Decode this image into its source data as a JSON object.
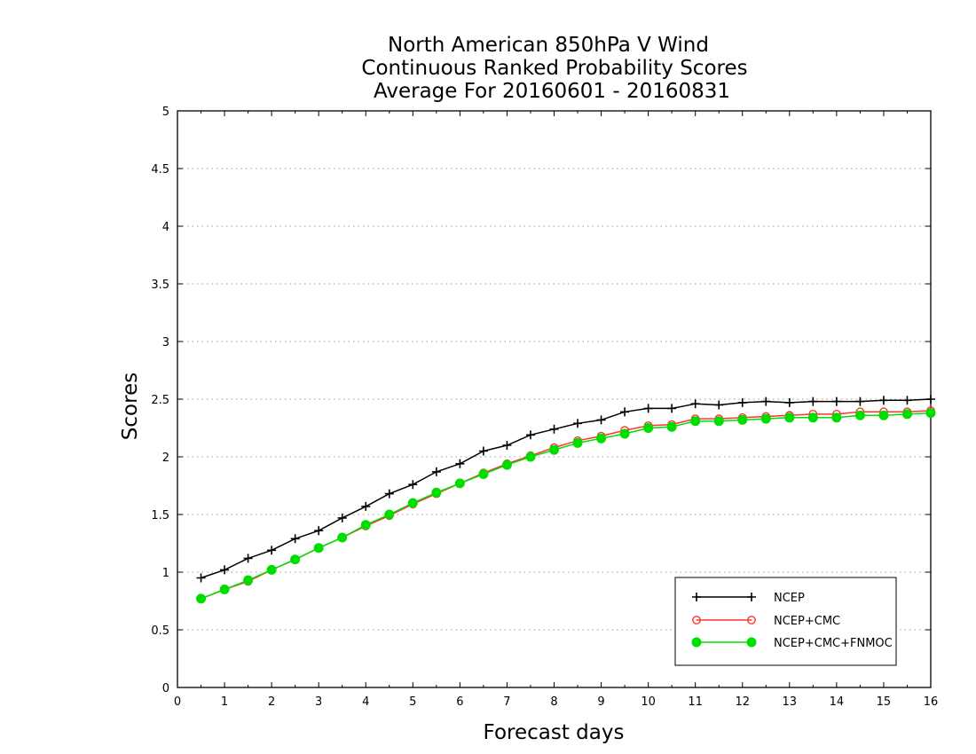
{
  "chart_data": {
    "type": "line",
    "title": [
      "North American 850hPa V Wind",
      "Continuous Ranked Probability Scores",
      "Average For 20160601 - 20160831"
    ],
    "xlabel": "Forecast days",
    "ylabel": "Scores",
    "xlim": [
      0,
      16
    ],
    "ylim": [
      0,
      5
    ],
    "x_ticks": [
      "0",
      "1",
      "2",
      "3",
      "4",
      "5",
      "6",
      "7",
      "8",
      "9",
      "10",
      "11",
      "12",
      "13",
      "14",
      "15",
      "16"
    ],
    "y_ticks": [
      "0",
      "0.5",
      "1",
      "1.5",
      "2",
      "2.5",
      "3",
      "3.5",
      "4",
      "4.5",
      "5"
    ],
    "grid": true,
    "legend_position": "bottom-right",
    "x": [
      0.5,
      1,
      1.5,
      2,
      2.5,
      3,
      3.5,
      4,
      4.5,
      5,
      5.5,
      6,
      6.5,
      7,
      7.5,
      8,
      8.5,
      9,
      9.5,
      10,
      10.5,
      11,
      11.5,
      12,
      12.5,
      13,
      13.5,
      14,
      14.5,
      15,
      15.5,
      16
    ],
    "series": [
      {
        "name": "NCEP",
        "color": "#000000",
        "marker": "plus",
        "values": [
          0.95,
          1.02,
          1.12,
          1.19,
          1.29,
          1.36,
          1.47,
          1.57,
          1.68,
          1.76,
          1.87,
          1.94,
          2.05,
          2.1,
          2.19,
          2.24,
          2.29,
          2.32,
          2.39,
          2.42,
          2.42,
          2.46,
          2.45,
          2.47,
          2.48,
          2.47,
          2.48,
          2.48,
          2.48,
          2.49,
          2.49,
          2.5
        ]
      },
      {
        "name": "NCEP+CMC",
        "color": "#ff3333",
        "marker": "open-circle",
        "values": [
          0.77,
          0.85,
          0.92,
          1.02,
          1.11,
          1.21,
          1.3,
          1.4,
          1.49,
          1.59,
          1.68,
          1.77,
          1.86,
          1.94,
          2.01,
          2.08,
          2.14,
          2.18,
          2.23,
          2.27,
          2.28,
          2.33,
          2.33,
          2.34,
          2.35,
          2.36,
          2.37,
          2.37,
          2.39,
          2.39,
          2.39,
          2.4
        ]
      },
      {
        "name": "NCEP+CMC+FNMOC",
        "color": "#00dd00",
        "marker": "filled-circle",
        "values": [
          0.77,
          0.85,
          0.93,
          1.02,
          1.11,
          1.21,
          1.3,
          1.41,
          1.5,
          1.6,
          1.69,
          1.77,
          1.85,
          1.93,
          2.0,
          2.06,
          2.12,
          2.16,
          2.2,
          2.25,
          2.26,
          2.31,
          2.31,
          2.32,
          2.33,
          2.34,
          2.34,
          2.34,
          2.36,
          2.36,
          2.37,
          2.38
        ]
      }
    ]
  }
}
